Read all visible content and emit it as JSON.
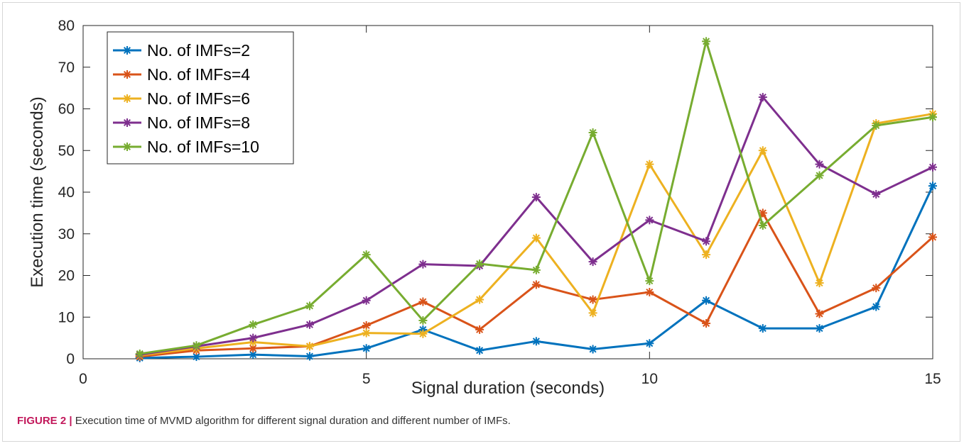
{
  "chart_data": {
    "type": "line",
    "xlabel": "Signal duration (seconds)",
    "ylabel": "Execution time (seconds)",
    "xlim": [
      0,
      15
    ],
    "ylim": [
      0,
      80
    ],
    "xticks": [
      0,
      5,
      10,
      15
    ],
    "yticks": [
      0,
      10,
      20,
      30,
      40,
      50,
      60,
      70,
      80
    ],
    "x": [
      1,
      2,
      3,
      4,
      5,
      6,
      7,
      8,
      9,
      10,
      11,
      12,
      13,
      14,
      15
    ],
    "grid": false,
    "legend_position": "top-left",
    "marker": "asterisk",
    "series": [
      {
        "name": "No. of IMFs=2",
        "color": "#0072BD",
        "values": [
          0.2,
          0.5,
          1.0,
          0.6,
          2.5,
          7.0,
          2.0,
          4.2,
          2.3,
          3.7,
          14.0,
          7.3,
          7.3,
          12.5,
          41.5
        ]
      },
      {
        "name": "No. of IMFs=4",
        "color": "#D95319",
        "values": [
          0.5,
          2.0,
          2.5,
          3.0,
          8.0,
          13.7,
          7.0,
          17.8,
          14.2,
          16.0,
          8.5,
          35.0,
          10.8,
          17.0,
          29.2
        ]
      },
      {
        "name": "No. of IMFs=6",
        "color": "#EDB120",
        "values": [
          0.8,
          2.5,
          4.0,
          3.0,
          6.2,
          6.0,
          14.2,
          29.0,
          11.0,
          46.7,
          25.0,
          50.0,
          18.2,
          56.5,
          58.8
        ]
      },
      {
        "name": "No. of IMFs=8",
        "color": "#7E2F8E",
        "values": [
          1.0,
          3.0,
          5.0,
          8.2,
          14.0,
          22.7,
          22.3,
          38.8,
          23.3,
          33.3,
          28.2,
          62.8,
          46.7,
          39.5,
          46.0
        ]
      },
      {
        "name": "No. of IMFs=10",
        "color": "#77AC30",
        "values": [
          1.2,
          3.2,
          8.2,
          12.7,
          25.0,
          9.2,
          22.8,
          21.3,
          54.3,
          18.7,
          76.2,
          32.0,
          44.0,
          56.0,
          58.0
        ]
      }
    ]
  },
  "caption": {
    "label": "FIGURE 2 |",
    "text": " Execution time of MVMD algorithm for different signal duration and different number of IMFs."
  }
}
